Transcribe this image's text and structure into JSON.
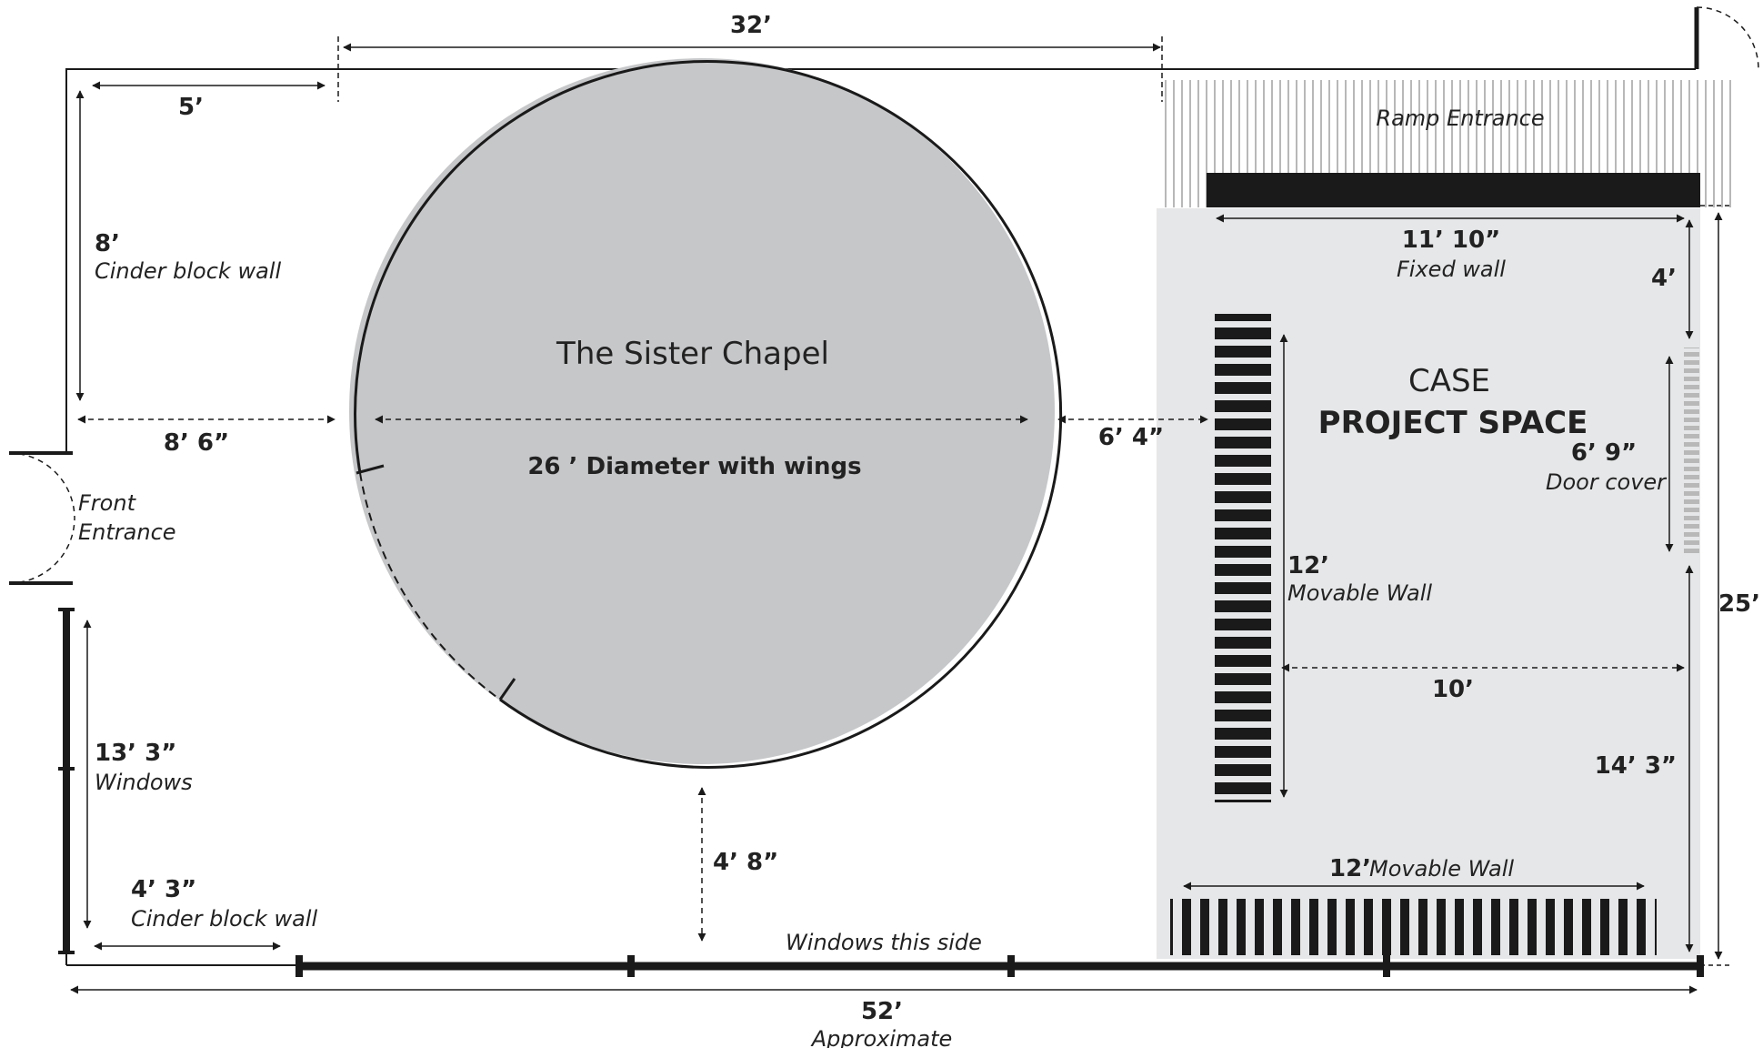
{
  "colors": {
    "line": "#1a1a1a",
    "chapel_fill": "#c6c7c9",
    "project_fill": "#e6e7e8",
    "ramp_hatch": "#a0a0a0",
    "door_cover": "#b8b8b8"
  },
  "chapel": {
    "title": "The Sister Chapel",
    "diameter_label": "26 ’ Diameter with wings"
  },
  "project_space": {
    "line1": "CASE",
    "line2": "PROJECT SPACE"
  },
  "ramp": {
    "label": "Ramp Entrance"
  },
  "front_entrance": {
    "line1": "Front",
    "line2": "Entrance"
  },
  "dimensions": {
    "top_total": "32’",
    "top_left": "5’",
    "left_wall_value": "8’",
    "left_wall_note": "Cinder block wall",
    "chapel_left_gap": "8’ 6”",
    "chapel_right_gap": "6’ 4”",
    "fixed_wall_value": "11’ 10”",
    "fixed_wall_note": "Fixed wall",
    "right_top": "4’",
    "door_cover_value": "6’ 9”",
    "door_cover_note": "Door cover",
    "movable_wall_v_value": "12’",
    "movable_wall_v_note": "Movable Wall",
    "inner_width": "10’",
    "right_lower": "14’ 3”",
    "right_total": "25’",
    "movable_wall_h_value": "12’",
    "movable_wall_h_note": "Movable Wall",
    "chapel_bottom_gap": "4’ 8”",
    "windows_left_value": "13’ 3”",
    "windows_left_note": "Windows",
    "bottom_left_value": "4’ 3”",
    "bottom_left_note": "Cinder block wall",
    "windows_side": "Windows this side",
    "bottom_total": "52’",
    "bottom_total_note": "Approximate"
  }
}
